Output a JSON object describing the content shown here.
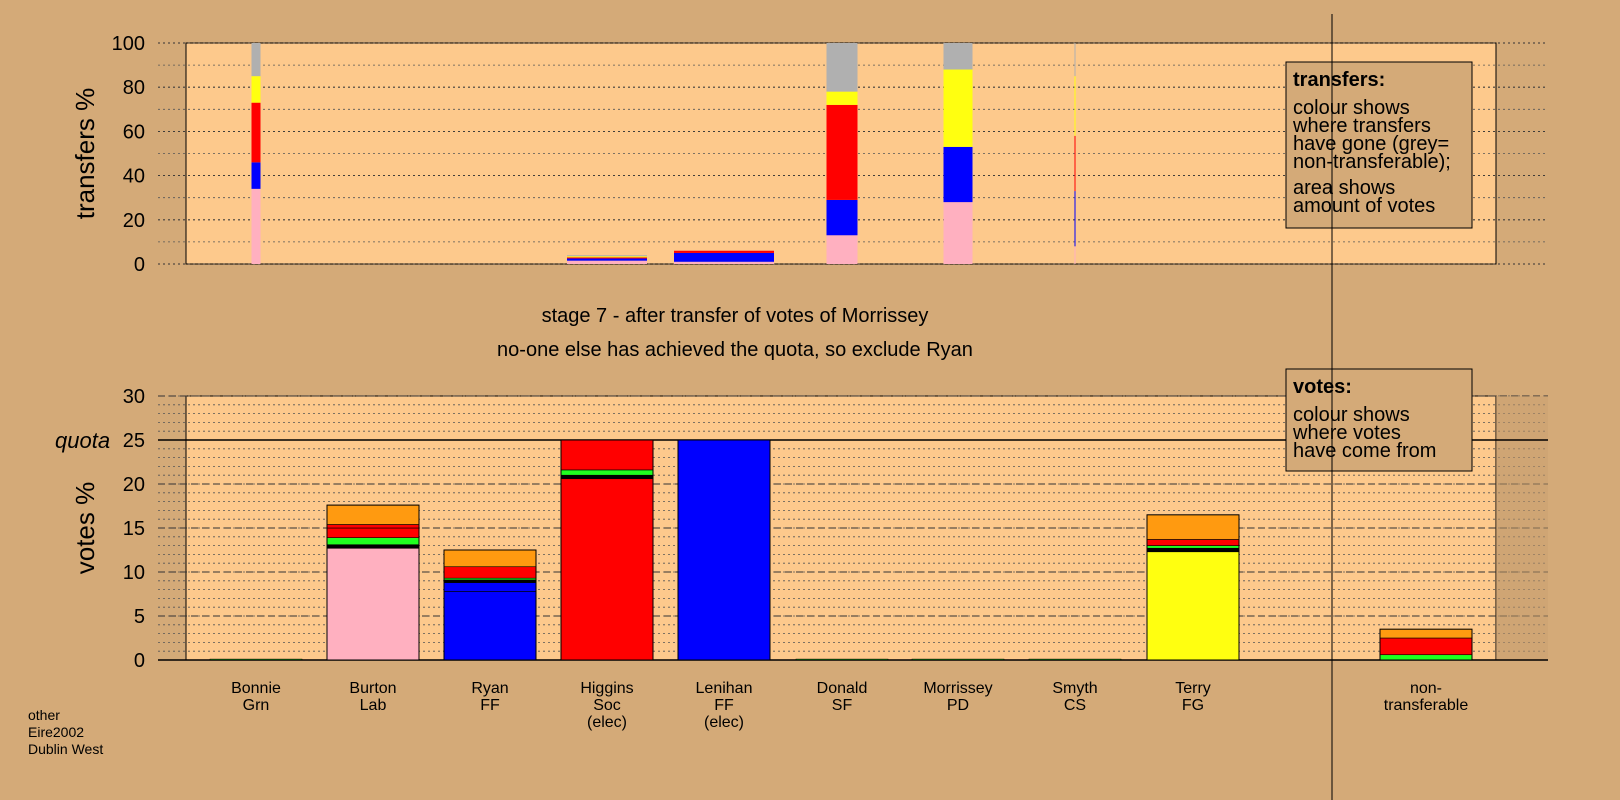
{
  "colors": {
    "background": "#d4aa78",
    "panel": "#fdc98c",
    "grey": "#b0b0b0",
    "yellow": "#ffff10",
    "red": "#ff0000",
    "blue": "#0000ff",
    "pink": "#ffb0c0",
    "green": "#20ff20",
    "orange": "#ff9a10",
    "black": "#000000"
  },
  "chart_data": [
    {
      "type": "bar",
      "name": "transfers",
      "ylabel": "transfers %",
      "ylim": [
        0,
        100
      ],
      "yticks": [
        "0",
        "20",
        "40",
        "60",
        "80",
        "100"
      ],
      "note": {
        "title": "transfers:",
        "lines": [
          "colour shows",
          "where transfers",
          "have gone (grey=",
          "non-transferable);",
          "area shows",
          "amount of votes"
        ]
      },
      "bars": [
        {
          "candidate": "Bonnie",
          "segments": [
            {
              "color": "pink",
              "from": 0,
              "to": 34
            },
            {
              "color": "blue",
              "from": 34,
              "to": 46
            },
            {
              "color": "red",
              "from": 46,
              "to": 73
            },
            {
              "color": "yellow",
              "from": 73,
              "to": 85
            },
            {
              "color": "grey",
              "from": 85,
              "to": 100
            }
          ]
        },
        {
          "candidate": "Higgins",
          "segments": [
            {
              "color": "pink",
              "from": 0,
              "to": 1.5
            },
            {
              "color": "blue",
              "from": 1.5,
              "to": 2.5
            },
            {
              "color": "red",
              "from": 2.5,
              "to": 3
            },
            {
              "color": "yellow",
              "from": 3,
              "to": 3.5
            },
            {
              "color": "grey",
              "from": 3.5,
              "to": 4
            }
          ]
        },
        {
          "candidate": "Lenihan",
          "segments": [
            {
              "color": "pink",
              "from": 0,
              "to": 1
            },
            {
              "color": "blue",
              "from": 1,
              "to": 5
            },
            {
              "color": "red",
              "from": 5,
              "to": 6
            }
          ]
        },
        {
          "candidate": "Donald",
          "segments": [
            {
              "color": "pink",
              "from": 0,
              "to": 13
            },
            {
              "color": "blue",
              "from": 13,
              "to": 29
            },
            {
              "color": "red",
              "from": 29,
              "to": 72
            },
            {
              "color": "yellow",
              "from": 72,
              "to": 78
            },
            {
              "color": "grey",
              "from": 78,
              "to": 100
            }
          ]
        },
        {
          "candidate": "Morrissey",
          "segments": [
            {
              "color": "pink",
              "from": 0,
              "to": 28
            },
            {
              "color": "blue",
              "from": 28,
              "to": 53
            },
            {
              "color": "yellow",
              "from": 53,
              "to": 88
            },
            {
              "color": "grey",
              "from": 88,
              "to": 100
            }
          ]
        },
        {
          "candidate": "Smyth",
          "segments": [
            {
              "color": "pink",
              "from": 0,
              "to": 8
            },
            {
              "color": "blue",
              "from": 8,
              "to": 33
            },
            {
              "color": "red",
              "from": 33,
              "to": 58
            },
            {
              "color": "yellow",
              "from": 58,
              "to": 85
            },
            {
              "color": "grey",
              "from": 85,
              "to": 100
            }
          ]
        }
      ]
    },
    {
      "type": "bar",
      "name": "votes",
      "ylabel": "votes %",
      "ylim": [
        0,
        30
      ],
      "yticks": [
        "0",
        "5",
        "10",
        "15",
        "20",
        "25",
        "30"
      ],
      "quota": {
        "label": "quota",
        "value": 25
      },
      "note": {
        "title": "votes:",
        "lines": [
          "colour shows",
          "where votes",
          "have come from"
        ]
      },
      "bars": [
        {
          "candidate": "Bonnie",
          "segments": [
            {
              "color": "green",
              "from": 0,
              "to": 0.1
            }
          ]
        },
        {
          "candidate": "Burton",
          "segments": [
            {
              "color": "pink",
              "from": 0,
              "to": 12.7
            },
            {
              "color": "black",
              "from": 12.7,
              "to": 13.1
            },
            {
              "color": "green",
              "from": 13.1,
              "to": 13.9
            },
            {
              "color": "red",
              "from": 13.9,
              "to": 15
            },
            {
              "color": "red",
              "from": 15,
              "to": 15.4
            },
            {
              "color": "orange",
              "from": 15.4,
              "to": 17.6
            }
          ]
        },
        {
          "candidate": "Ryan",
          "segments": [
            {
              "color": "blue",
              "from": 0,
              "to": 7.8
            },
            {
              "color": "blue",
              "from": 7.8,
              "to": 8.8
            },
            {
              "color": "black",
              "from": 8.8,
              "to": 9.1
            },
            {
              "color": "green",
              "from": 9.1,
              "to": 9.3
            },
            {
              "color": "red",
              "from": 9.3,
              "to": 10.6
            },
            {
              "color": "orange",
              "from": 10.6,
              "to": 12.5
            }
          ]
        },
        {
          "candidate": "Higgins",
          "segments": [
            {
              "color": "red",
              "from": 0,
              "to": 20.6
            },
            {
              "color": "black",
              "from": 20.6,
              "to": 21.0
            },
            {
              "color": "green",
              "from": 21.0,
              "to": 21.6
            },
            {
              "color": "red",
              "from": 21.6,
              "to": 25
            }
          ]
        },
        {
          "candidate": "Lenihan",
          "segments": [
            {
              "color": "blue",
              "from": 0,
              "to": 25
            }
          ]
        },
        {
          "candidate": "Donald",
          "segments": [
            {
              "color": "green",
              "from": 0,
              "to": 0.1
            }
          ]
        },
        {
          "candidate": "Morrissey",
          "segments": [
            {
              "color": "green",
              "from": 0,
              "to": 0.1
            }
          ]
        },
        {
          "candidate": "Smyth",
          "segments": [
            {
              "color": "green",
              "from": 0,
              "to": 0.1
            }
          ]
        },
        {
          "candidate": "Terry",
          "segments": [
            {
              "color": "yellow",
              "from": 0,
              "to": 12.3
            },
            {
              "color": "black",
              "from": 12.3,
              "to": 12.7
            },
            {
              "color": "green",
              "from": 12.7,
              "to": 13.0
            },
            {
              "color": "red",
              "from": 13.0,
              "to": 13.7
            },
            {
              "color": "orange",
              "from": 13.7,
              "to": 16.5
            }
          ]
        },
        {
          "candidate": "non-transferable",
          "segments": [
            {
              "color": "green",
              "from": 0,
              "to": 0.6
            },
            {
              "color": "red",
              "from": 0.6,
              "to": 2.5
            },
            {
              "color": "orange",
              "from": 2.5,
              "to": 3.5
            }
          ]
        }
      ]
    }
  ],
  "candidates": [
    {
      "key": "Bonnie",
      "line1": "Bonnie",
      "line2": "Grn",
      "line3": ""
    },
    {
      "key": "Burton",
      "line1": "Burton",
      "line2": "Lab",
      "line3": ""
    },
    {
      "key": "Ryan",
      "line1": "Ryan",
      "line2": "FF",
      "line3": ""
    },
    {
      "key": "Higgins",
      "line1": "Higgins",
      "line2": "Soc",
      "line3": "(elec)"
    },
    {
      "key": "Lenihan",
      "line1": "Lenihan",
      "line2": "FF",
      "line3": "(elec)"
    },
    {
      "key": "Donald",
      "line1": "Donald",
      "line2": "SF",
      "line3": ""
    },
    {
      "key": "Morrissey",
      "line1": "Morrissey",
      "line2": "PD",
      "line3": ""
    },
    {
      "key": "Smyth",
      "line1": "Smyth",
      "line2": "CS",
      "line3": ""
    },
    {
      "key": "Terry",
      "line1": "Terry",
      "line2": "FG",
      "line3": ""
    },
    {
      "key": "non-transferable",
      "line1": "non-",
      "line2": "transferable",
      "line3": ""
    }
  ],
  "stage": {
    "line1": "stage 7 - after transfer of votes of Morrissey",
    "line2": "no-one else has achieved the quota, so exclude Ryan"
  },
  "footer": {
    "line1": "other",
    "line2": "Eire2002",
    "line3": "Dublin West"
  }
}
